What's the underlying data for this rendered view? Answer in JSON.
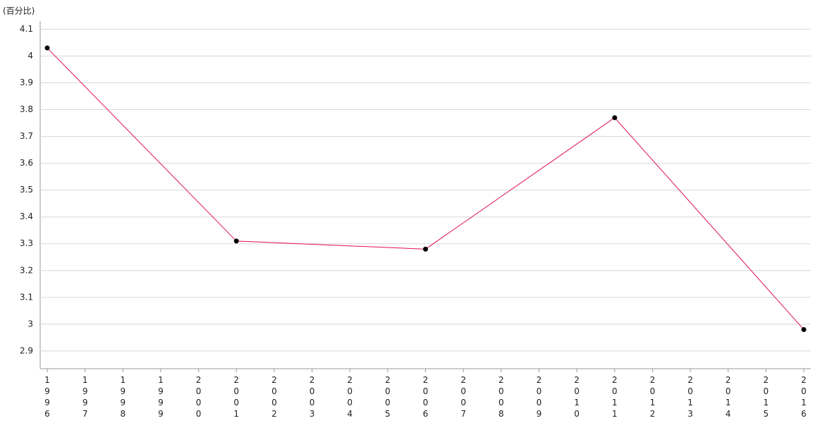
{
  "chart_data": {
    "type": "line",
    "y_label": "(百分比)",
    "x": [
      1996,
      2001,
      2006,
      2011,
      2016
    ],
    "series": [
      {
        "color": "#e0104a",
        "marker_color": "#000000",
        "values": [
          4.03,
          3.31,
          3.28,
          3.77,
          2.98
        ]
      }
    ],
    "xlim": [
      1996,
      2016
    ],
    "xticks": [
      1996,
      1997,
      1998,
      1999,
      2000,
      2001,
      2002,
      2003,
      2004,
      2005,
      2006,
      2007,
      2008,
      2009,
      2010,
      2011,
      2012,
      2013,
      2014,
      2015,
      2016
    ],
    "ylim": [
      2.834,
      4.13
    ],
    "yticks": [
      2.9,
      3,
      3.1,
      3.2,
      3.3,
      3.4,
      3.5,
      3.6,
      3.7,
      3.8,
      3.9,
      4,
      4.1
    ],
    "grid": true
  }
}
